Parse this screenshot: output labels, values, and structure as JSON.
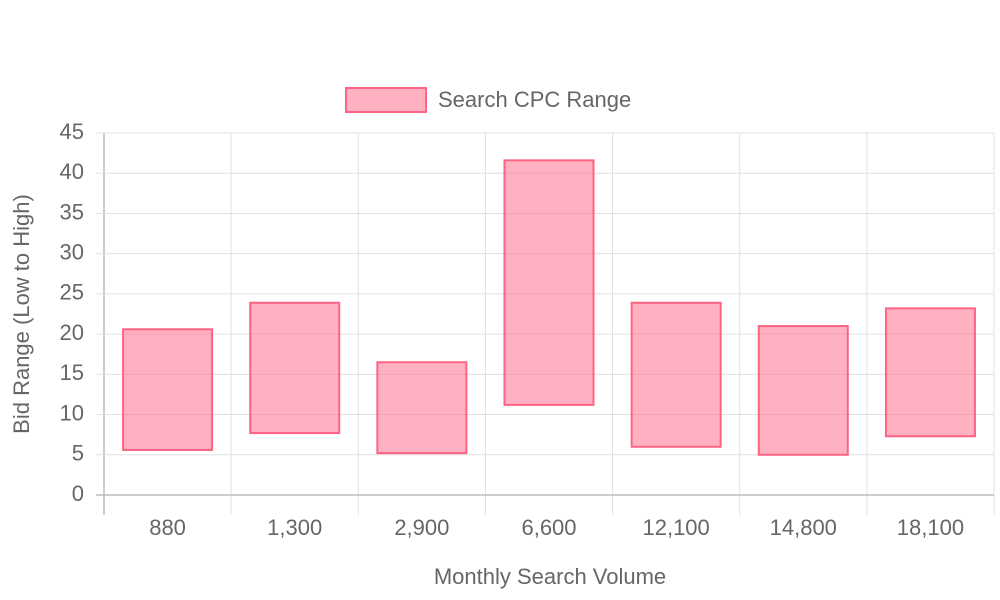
{
  "chart_data": {
    "type": "bar",
    "x_label": "Monthly Search Volume",
    "y_label": "Bid Range (Low to High)",
    "categories": [
      "880",
      "1,300",
      "2,900",
      "6,600",
      "12,100",
      "14,800",
      "18,100"
    ],
    "series": [
      {
        "name": "Search CPC Range",
        "color": "#ff6384",
        "values": [
          [
            5.6,
            20.6
          ],
          [
            7.7,
            23.9
          ],
          [
            5.2,
            16.5
          ],
          [
            11.2,
            41.6
          ],
          [
            6.0,
            23.9
          ],
          [
            5.0,
            21.0
          ],
          [
            7.3,
            23.2
          ]
        ]
      }
    ],
    "ylim": [
      0,
      45
    ],
    "yticks": [
      0,
      5,
      10,
      15,
      20,
      25,
      30,
      35,
      40,
      45
    ],
    "grid": true,
    "legend": "top"
  }
}
